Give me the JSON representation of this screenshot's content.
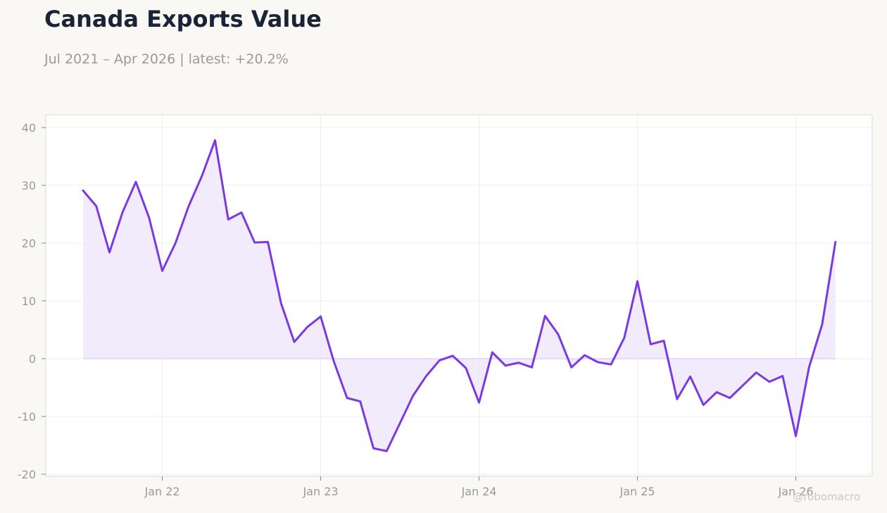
{
  "header": {
    "title": "Canada Exports Value",
    "subtitle": "Jul 2021 – Apr 2026 | latest: +20.2%"
  },
  "watermark": "@robomacro",
  "chart_data": {
    "type": "area",
    "title": "Canada Exports Value",
    "subtitle": "Jul 2021 – Apr 2026 | latest: +20.2%",
    "xlabel": "",
    "ylabel": "",
    "ylim": [
      -20,
      40
    ],
    "yticks": [
      -20,
      -10,
      0,
      10,
      20,
      30,
      40
    ],
    "xticks": [
      {
        "date": "2022-01",
        "label": "Jan 22"
      },
      {
        "date": "2023-01",
        "label": "Jan 23"
      },
      {
        "date": "2024-01",
        "label": "Jan 24"
      },
      {
        "date": "2025-01",
        "label": "Jan 25"
      },
      {
        "date": "2026-01",
        "label": "Jan 26"
      }
    ],
    "grid": true,
    "legend": "none",
    "colors": {
      "line": "#7b3ae0",
      "fill": "#ede6fb",
      "zero_line": "#ddd2f6",
      "grid": "#eeeeee",
      "frame": "#dcdad4"
    },
    "series": [
      {
        "x": [
          "2021-07",
          "2021-08",
          "2021-09",
          "2021-10",
          "2021-11",
          "2021-12",
          "2022-01",
          "2022-02",
          "2022-03",
          "2022-04",
          "2022-05",
          "2022-06",
          "2022-07",
          "2022-08",
          "2022-09",
          "2022-10",
          "2022-11",
          "2022-12",
          "2023-01",
          "2023-02",
          "2023-03",
          "2023-04",
          "2023-05",
          "2023-06",
          "2023-07",
          "2023-08",
          "2023-09",
          "2023-10",
          "2023-11",
          "2023-12",
          "2024-01",
          "2024-02",
          "2024-03",
          "2024-04",
          "2024-05",
          "2024-06",
          "2024-07",
          "2024-08",
          "2024-09",
          "2024-10",
          "2024-11",
          "2024-12",
          "2025-01",
          "2025-02",
          "2025-03",
          "2025-04",
          "2025-05",
          "2025-06",
          "2025-07",
          "2025-08",
          "2025-09",
          "2025-10",
          "2025-11",
          "2025-12",
          "2026-01",
          "2026-02",
          "2026-03",
          "2026-04"
        ],
        "values": [
          29.1,
          26.4,
          18.4,
          25.4,
          30.6,
          24.4,
          15.2,
          20.0,
          26.4,
          31.6,
          37.8,
          24.1,
          25.3,
          20.1,
          20.2,
          9.6,
          2.9,
          5.5,
          7.3,
          -0.5,
          -6.8,
          -7.4,
          -15.5,
          -16.0,
          -11.2,
          -6.4,
          -3.0,
          -0.3,
          0.5,
          -1.6,
          -7.6,
          1.1,
          -1.2,
          -0.7,
          -1.5,
          7.4,
          4.2,
          -1.5,
          0.6,
          -0.6,
          -1.0,
          3.6,
          13.4,
          2.5,
          3.1,
          -7.0,
          -3.1,
          -8.0,
          -5.8,
          -6.8,
          -4.6,
          -2.4,
          -4.0,
          -3.0,
          -13.4,
          -1.5,
          6.0,
          20.2
        ]
      }
    ]
  }
}
